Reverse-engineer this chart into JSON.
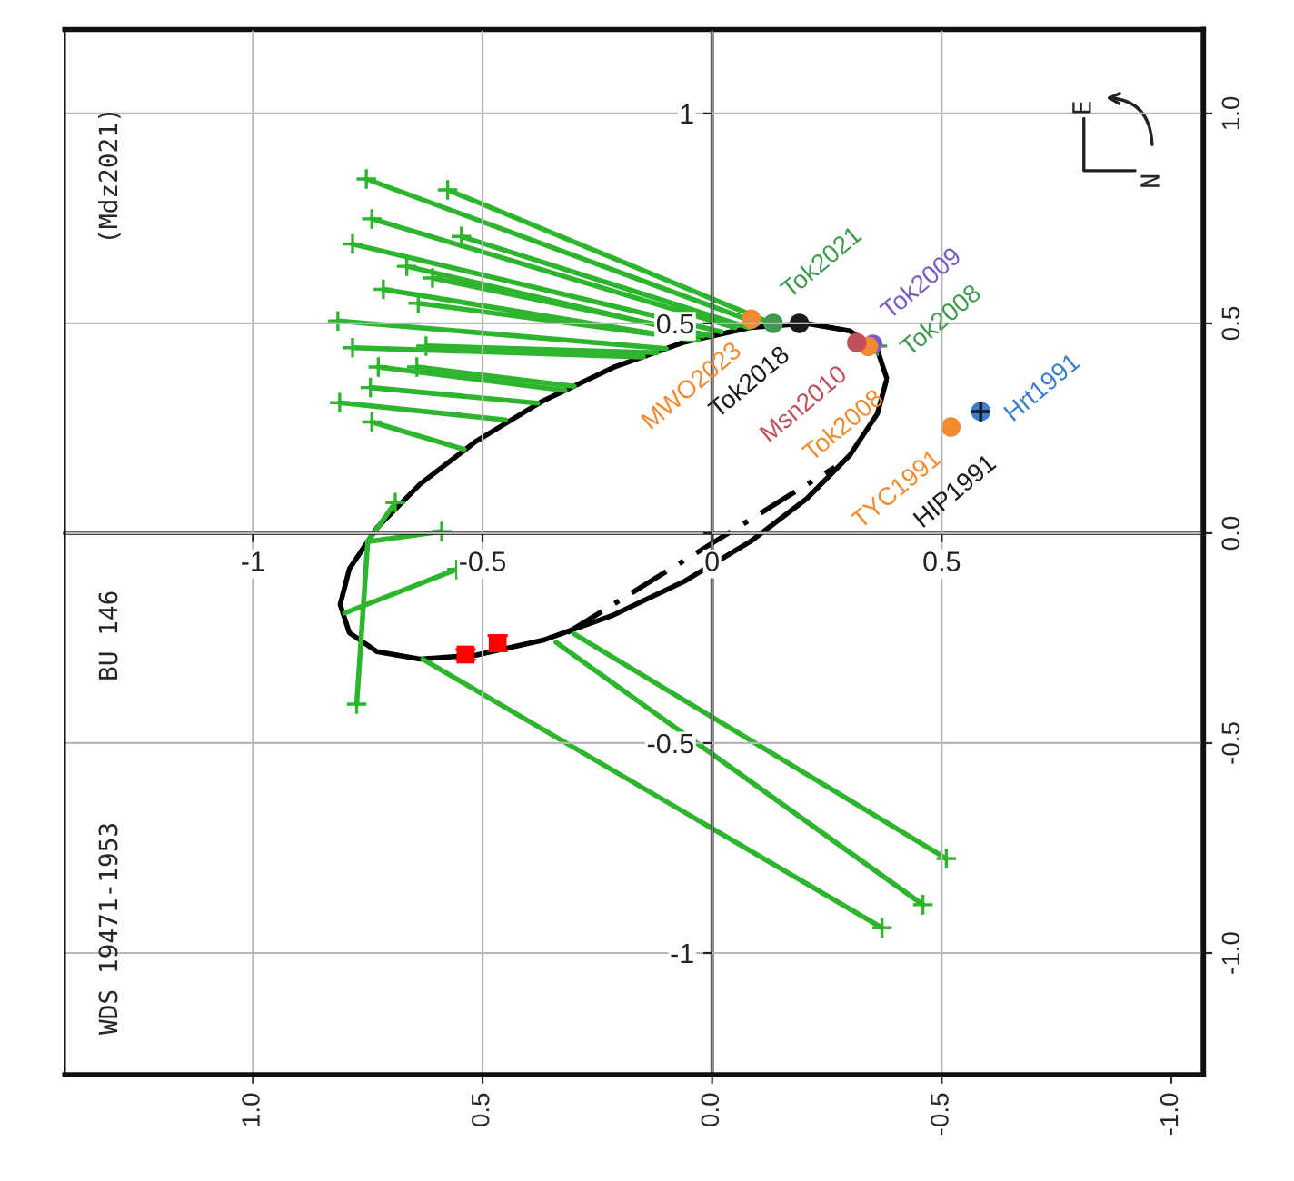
{
  "chart_data": {
    "type": "line",
    "xlim": [
      -1.41,
      1.07
    ],
    "ylim": [
      -1.29,
      1.2
    ],
    "xticks": [
      -1,
      -0.5,
      {
        "value": 0,
        "label": "0"
      },
      0.5
    ],
    "yticks": [
      -1,
      -0.5,
      {
        "value": 0,
        "label": null
      },
      0.5,
      1
    ],
    "x2lim": [
      1.41,
      -1.07
    ],
    "x2ticks": [
      {
        "value": 1,
        "label": "1.0"
      },
      {
        "value": 0.5,
        "label": "0.5"
      },
      {
        "value": 0,
        "label": "0.0"
      },
      {
        "value": -0.5,
        "label": "-0.5"
      },
      {
        "value": -1,
        "label": "-1.0"
      }
    ],
    "y2lim": [
      -1.29,
      1.2
    ],
    "y2ticks": [
      {
        "value": 1,
        "label": "1.0"
      },
      {
        "value": 0.5,
        "label": "0.5"
      },
      {
        "value": 0,
        "label": "0.0"
      },
      {
        "value": -0.5,
        "label": "-0.5"
      },
      {
        "value": -1,
        "label": "-1.0"
      }
    ],
    "grid": true,
    "annotations": [
      "(Mdz2021)",
      "BU 146",
      "WDS 19471-1953",
      "E",
      "N"
    ],
    "series": [
      {
        "color": "#000000",
        "line_style": "solid",
        "marker": "none",
        "x": [
          0.38,
          0.36,
          0.3,
          0.206,
          0.083,
          -0.061,
          -0.215,
          -0.369,
          -0.513,
          -0.636,
          -0.73,
          -0.79,
          -0.81,
          -0.79,
          -0.73,
          -0.636,
          -0.513,
          -0.369,
          -0.215,
          -0.061,
          0.083,
          0.206,
          0.3,
          0.36,
          0.379
        ],
        "values": [
          0.37,
          0.437,
          0.482,
          0.5,
          0.49,
          0.455,
          0.395,
          0.315,
          0.22,
          0.117,
          0.013,
          -0.085,
          -0.17,
          -0.237,
          -0.282,
          -0.3,
          -0.29,
          -0.255,
          -0.195,
          -0.115,
          -0.02,
          0.082,
          0.186,
          0.285,
          0.362
        ]
      },
      {
        "color": "#000000",
        "line_style": "dashed",
        "marker": "none",
        "x": [
          -0.315,
          0.267
        ],
        "values": [
          -0.237,
          0.157
        ]
      },
      {
        "color": "#2db52d",
        "line_style": "solid",
        "marker": "none",
        "x": [
          -0.753,
          0.1,
          null,
          -0.576,
          0.13,
          null,
          -0.741,
          0.05,
          null,
          -0.546,
          0.08,
          null,
          -0.783,
          0.02,
          null,
          -0.665,
          -0.02,
          null,
          -0.609,
          0.0,
          null,
          -0.716,
          -0.04,
          null,
          -0.64,
          -0.03,
          null,
          -0.815,
          -0.1,
          null,
          -0.783,
          -0.15,
          null,
          -0.623,
          -0.12,
          null,
          -0.727,
          -0.32,
          null,
          -0.643,
          -0.3,
          null,
          -0.744,
          -0.38,
          null,
          -0.811,
          -0.45,
          null,
          -0.741,
          -0.54,
          null,
          -0.69,
          -0.75,
          null,
          -0.589,
          -0.75,
          null,
          -0.556,
          -0.8,
          null,
          -0.774,
          -0.75,
          null,
          0.51,
          -0.3,
          null,
          0.459,
          -0.34,
          null,
          0.37,
          -0.63
        ],
        "values": [
          0.844,
          0.5,
          null,
          0.818,
          0.5,
          null,
          0.749,
          0.49,
          null,
          0.707,
          0.49,
          null,
          0.689,
          0.48,
          null,
          0.636,
          0.47,
          null,
          0.608,
          0.47,
          null,
          0.581,
          0.46,
          null,
          0.548,
          0.46,
          null,
          0.506,
          0.44,
          null,
          0.442,
          0.42,
          null,
          0.446,
          0.43,
          null,
          0.396,
          0.34,
          null,
          0.396,
          0.35,
          null,
          0.347,
          0.31,
          null,
          0.311,
          0.27,
          null,
          0.265,
          0.2,
          null,
          0.073,
          -0.02,
          null,
          0.004,
          -0.02,
          null,
          -0.086,
          -0.19,
          null,
          -0.407,
          -0.02,
          null,
          -0.775,
          -0.24,
          null,
          -0.885,
          -0.26,
          null,
          -0.94,
          -0.3
        ]
      },
      {
        "type": "scatter",
        "color": "#2db52d",
        "marker": "cross",
        "x": [
          -0.753,
          -0.576,
          -0.741,
          -0.546,
          -0.783,
          -0.665,
          -0.609,
          -0.716,
          -0.64,
          -0.815,
          -0.783,
          -0.623,
          -0.727,
          -0.643,
          -0.744,
          -0.811,
          -0.741,
          -0.69,
          -0.589,
          -0.556,
          -0.774,
          0.51,
          0.459,
          0.37
        ],
        "values": [
          0.844,
          0.818,
          0.749,
          0.707,
          0.689,
          0.636,
          0.608,
          0.581,
          0.548,
          0.506,
          0.442,
          0.446,
          0.396,
          0.396,
          0.347,
          0.311,
          0.265,
          0.073,
          0.004,
          -0.086,
          -0.407,
          -0.775,
          -0.885,
          -0.94
        ]
      },
      {
        "type": "scatter",
        "color": "#ff0000",
        "marker": "square",
        "x": [
          -0.537,
          -0.467
        ],
        "values": [
          -0.289,
          -0.262
        ],
        "errors": [
          0.012,
          0.018
        ]
      },
      {
        "type": "scatter",
        "name": "Tok2021",
        "color": "#3f9a4f",
        "marker": "circle",
        "x": [
          0.133
        ],
        "values": [
          0.5
        ]
      },
      {
        "type": "scatter",
        "name": "MWO2023",
        "color": "#f28a30",
        "marker": "circle",
        "x": [
          0.085
        ],
        "values": [
          0.51
        ]
      },
      {
        "type": "scatter",
        "name": "Tok2008",
        "color": "#3f9a4f",
        "marker": "cross",
        "x": [
          0.36
        ],
        "values": [
          0.446
        ]
      },
      {
        "type": "scatter",
        "name": "Tok2018",
        "color": "#1a1a1a",
        "marker": "circle",
        "x": [
          0.19
        ],
        "values": [
          0.5
        ]
      },
      {
        "type": "scatter",
        "name": "Tok2009",
        "color": "#7a5cc8",
        "marker": "circle",
        "x": [
          0.35
        ],
        "values": [
          0.45
        ]
      },
      {
        "type": "scatter",
        "name": "Tok2008",
        "color": "#f28a30",
        "marker": "circle",
        "x": [
          0.34
        ],
        "values": [
          0.445
        ]
      },
      {
        "type": "scatter",
        "name": "Hrt1991",
        "color": "#3a7fcf",
        "marker": "circle",
        "x": [
          0.585
        ],
        "values": [
          0.29
        ]
      },
      {
        "type": "scatter",
        "name": "Msn2010",
        "color": "#c0505a",
        "marker": "circle",
        "x": [
          0.315
        ],
        "values": [
          0.454
        ]
      },
      {
        "type": "scatter",
        "name": "TYC1991",
        "color": "#f28a30",
        "marker": "circle",
        "x": [
          0.52
        ],
        "values": [
          0.253
        ]
      },
      {
        "type": "scatter",
        "name": "HIP1991",
        "color": "#1a1a1a",
        "marker": "cross",
        "x": [
          0.585
        ],
        "values": [
          0.29
        ]
      }
    ]
  }
}
